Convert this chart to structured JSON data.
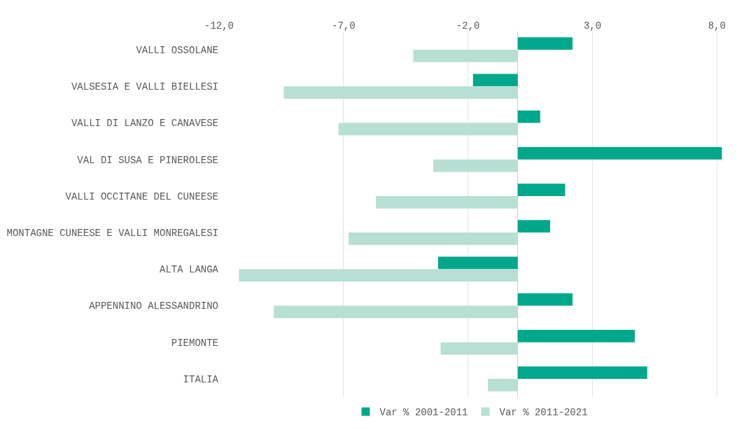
{
  "chart_data": {
    "type": "bar",
    "orientation": "horizontal",
    "categories": [
      "VALLI OSSOLANE",
      "VALSESIA E VALLI BIELLESI",
      "VALLI DI LANZO E CANAVESE",
      "VAL DI SUSA E PINEROLESE",
      "VALLI OCCITANE DEL CUNEESE",
      "MONTAGNE CUNEESE E VALLI MONREGALESI",
      "ALTA LANGA",
      "APPENNINO ALESSANDRINO",
      "PIEMONTE",
      "ITALIA"
    ],
    "series": [
      {
        "name": "Var % 2001-2011",
        "color": "#00a88b",
        "values": [
          2.2,
          -1.8,
          0.9,
          8.2,
          1.9,
          1.3,
          -3.2,
          2.2,
          4.7,
          5.2
        ]
      },
      {
        "name": "Var % 2011-2021",
        "color": "#b8dfd3",
        "values": [
          -4.2,
          -9.4,
          -7.2,
          -3.4,
          -5.7,
          -6.8,
          -11.2,
          -9.8,
          -3.1,
          -1.2
        ]
      }
    ],
    "xlim": [
      -12,
      8.3
    ],
    "xticks": [
      {
        "value": -12,
        "label": "-12,0"
      },
      {
        "value": -7,
        "label": "-7,0"
      },
      {
        "value": -2,
        "label": "-2,0"
      },
      {
        "value": 3,
        "label": "3,0"
      },
      {
        "value": 8,
        "label": "8,0"
      }
    ],
    "grid": "x",
    "legend": "bottom"
  }
}
